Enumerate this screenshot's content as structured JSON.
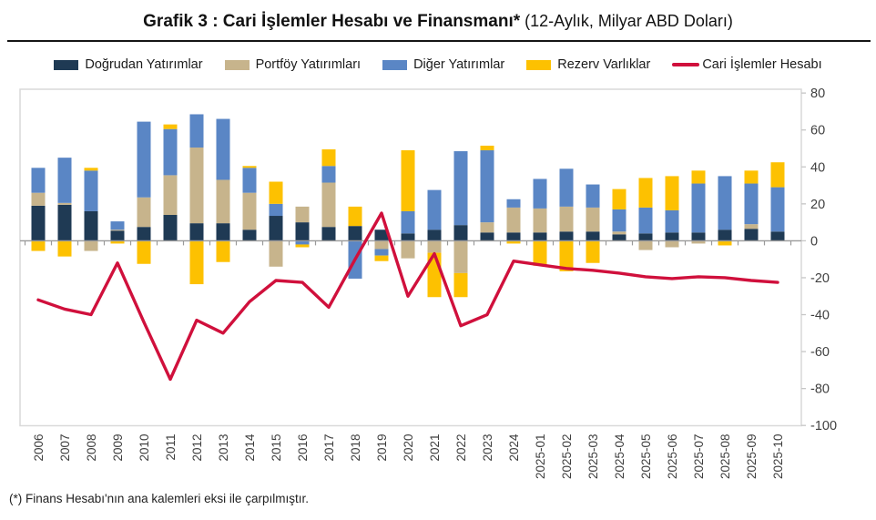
{
  "title": {
    "main": "Grafik 3 : Cari İşlemler Hesabı ve Finansmanı*",
    "sub": "(12-Aylık, Milyar ABD Doları)"
  },
  "legend": {
    "items": [
      {
        "label": "Doğrudan Yatırımlar",
        "color": "#1F3A54",
        "marker": "box"
      },
      {
        "label": "Portföy Yatırımları",
        "color": "#C7B48C",
        "marker": "box"
      },
      {
        "label": "Diğer Yatırımlar",
        "color": "#5A86C5",
        "marker": "box"
      },
      {
        "label": "Rezerv Varlıklar",
        "color": "#FDC101",
        "marker": "box"
      },
      {
        "label": "Cari İşlemler Hesabı",
        "color": "#D0103C",
        "marker": "line"
      }
    ]
  },
  "footnote": "(*) Finans Hesabı'nın ana kalemleri eksi ile çarpılmıştır.",
  "y_axis": {
    "ticks": [
      80,
      60,
      40,
      20,
      0,
      -20,
      -40,
      -60,
      -80,
      -100
    ]
  },
  "chart_data": {
    "type": "bar",
    "subtype": "stacked-bar-with-line",
    "title": "Grafik 3 : Cari İşlemler Hesabı ve Finansmanı* (12-Aylık, Milyar ABD Doları)",
    "ylim": [
      -100,
      80
    ],
    "y_step": 20,
    "grid": false,
    "legend_position": "top",
    "categories": [
      "2006",
      "2007",
      "2008",
      "2009",
      "2010",
      "2011",
      "2012",
      "2013",
      "2014",
      "2015",
      "2016",
      "2017",
      "2018",
      "2019",
      "2020",
      "2021",
      "2022",
      "2023",
      "2024",
      "2025-01",
      "2025-02",
      "2025-03",
      "2025-04",
      "2025-05",
      "2025-06",
      "2025-07",
      "2025-08",
      "2025-09",
      "2025-10"
    ],
    "series": [
      {
        "name": "Doğrudan Yatırımlar",
        "type": "bar",
        "color": "#1F3A54",
        "values": [
          19,
          19.5,
          16,
          5.5,
          7.5,
          14,
          9.5,
          9.5,
          6,
          13.5,
          10,
          7.5,
          8,
          6,
          4,
          6,
          8.5,
          4.5,
          4.5,
          4.5,
          5,
          5,
          3.5,
          4,
          4.5,
          4.5,
          6,
          6.5,
          5
        ]
      },
      {
        "name": "Portföy Yatırımları",
        "type": "bar",
        "color": "#C7B48C",
        "values": [
          7,
          1,
          -5.5,
          0.5,
          16,
          21.5,
          41,
          23.5,
          20,
          -14,
          8.5,
          24,
          0,
          -4.5,
          -9.5,
          -6.5,
          -17.5,
          5.5,
          13.5,
          13,
          13.5,
          13,
          1.5,
          -5,
          -3.5,
          -1.5,
          0,
          2.5,
          0
        ]
      },
      {
        "name": "Diğer Yatırımlar",
        "type": "bar",
        "color": "#5A86C5",
        "values": [
          13.5,
          24.5,
          22,
          4.5,
          41,
          25,
          18,
          33,
          13.5,
          6.5,
          -2,
          9,
          -20.5,
          -3.5,
          12,
          21.5,
          40,
          39,
          4.5,
          16,
          20.5,
          12.5,
          12,
          14,
          12,
          26.5,
          29,
          22,
          24
        ]
      },
      {
        "name": "Rezerv Varlıklar",
        "type": "bar",
        "color": "#FDC101",
        "values": [
          -5.5,
          -8.5,
          1.5,
          -1.5,
          -12.5,
          2.5,
          -23.5,
          -11.5,
          1,
          12,
          -1.5,
          9,
          10.5,
          -3,
          33,
          -24,
          -13,
          2.5,
          -1.5,
          -13.5,
          -16.5,
          -12,
          11,
          16,
          18.5,
          7,
          -2.5,
          7,
          13.5
        ]
      },
      {
        "name": "Cari İşlemler Hesabı",
        "type": "line",
        "color": "#D0103C",
        "values": [
          -32,
          -37,
          -40,
          -12,
          -44,
          -75,
          -43,
          -50,
          -33,
          -21.5,
          -22.5,
          -36,
          -10,
          15,
          -30,
          -7,
          -46,
          -40,
          -11,
          -13,
          -15,
          -16,
          -17.5,
          -19.5,
          -20.5,
          -19.5,
          -20,
          -21.5,
          -22.5
        ]
      }
    ]
  }
}
